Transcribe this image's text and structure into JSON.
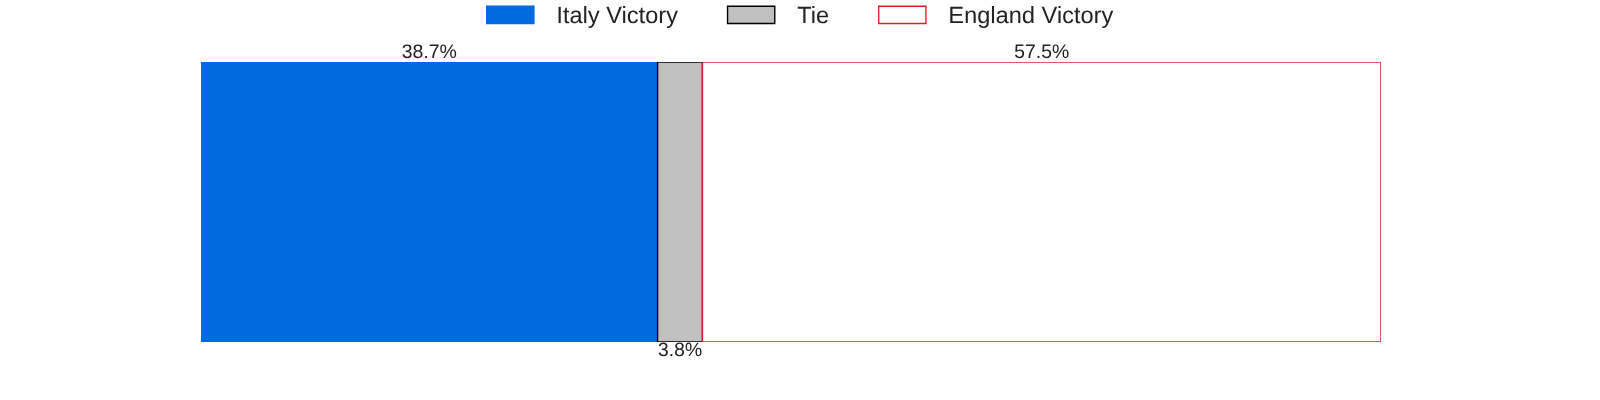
{
  "chart_data": {
    "type": "bar",
    "orientation": "horizontal",
    "stacked": true,
    "categories": [
      null
    ],
    "xlim": [
      0,
      100
    ],
    "tick_labels": false,
    "grid": false,
    "legend": "top",
    "series": [
      {
        "name": "Italy Victory",
        "color": "#0069e0",
        "colors": [
          "#0069e0"
        ],
        "values": [
          38.7
        ],
        "value_labels": [
          "38.7%"
        ]
      },
      {
        "name": "Tie",
        "color": "#000000",
        "colors": [
          "#c0c0c0"
        ],
        "values": [
          3.8
        ],
        "value_labels": [
          "3.8%"
        ]
      },
      {
        "name": "England Victory",
        "color": "#e0202a",
        "colors": [
          "#ffffff"
        ],
        "values": [
          57.5
        ],
        "value_labels": [
          "57.5%"
        ]
      }
    ]
  }
}
